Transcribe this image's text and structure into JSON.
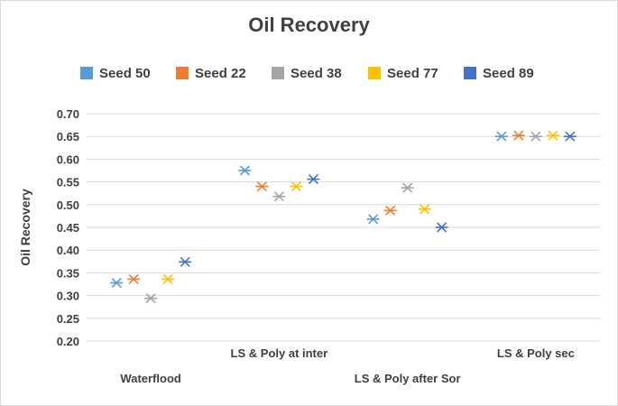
{
  "chart_data": {
    "type": "scatter",
    "title": "Oil Recovery",
    "ylabel": "Oil Recovery",
    "xlabel": "",
    "ylim": [
      0.2,
      0.7
    ],
    "ystep": 0.05,
    "grid": true,
    "legend_position": "top",
    "categories": [
      "Waterflood",
      "LS & Poly at inter",
      "LS & Poly after Sor",
      "LS & Poly sec"
    ],
    "series": [
      {
        "name": "Seed 50",
        "color": "#5b9bd5",
        "values": [
          0.328,
          0.575,
          0.468,
          0.65
        ]
      },
      {
        "name": "Seed 22",
        "color": "#ed7d31",
        "values": [
          0.336,
          0.54,
          0.487,
          0.652
        ]
      },
      {
        "name": "Seed 38",
        "color": "#a5a5a5",
        "values": [
          0.294,
          0.518,
          0.537,
          0.65
        ]
      },
      {
        "name": "Seed 77",
        "color": "#ffc000",
        "values": [
          0.336,
          0.54,
          0.49,
          0.652
        ]
      },
      {
        "name": "Seed 89",
        "color": "#4472c4",
        "values": [
          0.374,
          0.556,
          0.45,
          0.65
        ]
      }
    ]
  }
}
